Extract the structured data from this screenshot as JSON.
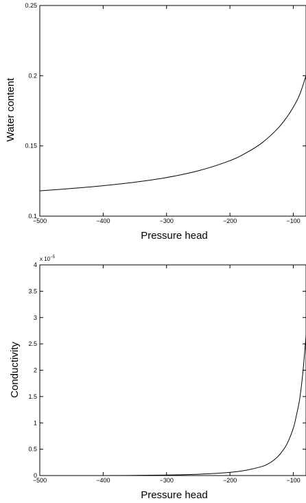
{
  "chart_data": [
    {
      "type": "line",
      "xlabel": "Pressure head",
      "ylabel": "Water content",
      "xlim": [
        -500,
        -80
      ],
      "ylim": [
        0.1,
        0.25
      ],
      "xticks": [
        -500,
        -400,
        -300,
        -200,
        -100
      ],
      "yticks": [
        0.1,
        0.15,
        0.2,
        0.25
      ],
      "xtick_labels": [
        "−500",
        "−400",
        "−300",
        "−200",
        "−100"
      ],
      "ytick_labels": [
        "0.1",
        "0.15",
        "0.2",
        "0.25"
      ],
      "exponent_label": "",
      "series": [
        {
          "x": [
            -500,
            -450,
            -400,
            -350,
            -300,
            -250,
            -200,
            -175,
            -150,
            -125,
            -110,
            -100,
            -90,
            -80
          ],
          "values": [
            0.118,
            0.1197,
            0.1217,
            0.1242,
            0.1275,
            0.1323,
            0.1395,
            0.1449,
            0.152,
            0.1622,
            0.1706,
            0.1776,
            0.1865,
            0.2
          ]
        }
      ]
    },
    {
      "type": "line",
      "xlabel": "Pressure head",
      "ylabel": "Conductivity",
      "xlim": [
        -500,
        -80
      ],
      "ylim": [
        0,
        4
      ],
      "xticks": [
        -500,
        -400,
        -300,
        -200,
        -100
      ],
      "yticks": [
        0,
        0.5,
        1,
        1.5,
        2,
        2.5,
        3,
        3.5,
        4
      ],
      "xtick_labels": [
        "−500",
        "−400",
        "−300",
        "−200",
        "−100"
      ],
      "ytick_labels": [
        "0",
        "0.5",
        "1",
        "1.5",
        "2",
        "2.5",
        "3",
        "3.5",
        "4"
      ],
      "exponent_label": "x 10",
      "exponent_power": "−5",
      "series": [
        {
          "x": [
            -500,
            -400,
            -300,
            -250,
            -200,
            -175,
            -150,
            -140,
            -130,
            -120,
            -110,
            -100,
            -95,
            -90,
            -85,
            -80
          ],
          "values": [
            0.0,
            0.0,
            0.01,
            0.025,
            0.06,
            0.1,
            0.17,
            0.22,
            0.3,
            0.42,
            0.6,
            0.9,
            1.15,
            1.45,
            1.95,
            2.65
          ]
        }
      ]
    }
  ]
}
